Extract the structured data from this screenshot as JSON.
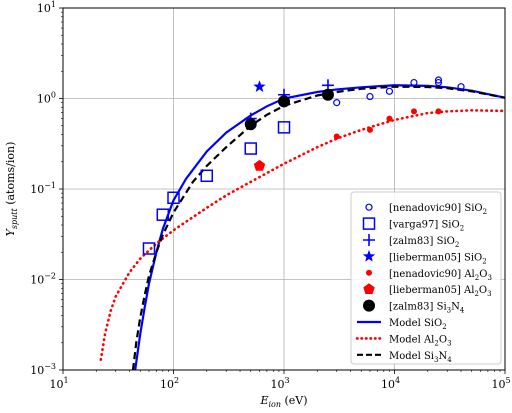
{
  "chart_data": {
    "type": "scatter",
    "title": "",
    "xlabel": {
      "main": "E",
      "sub": "ion",
      "unit": " (eV)"
    },
    "ylabel": {
      "main": "Y",
      "sub": "sputt",
      "unit": " (atoms/ion)"
    },
    "xscale": "log",
    "yscale": "log",
    "xlim": [
      10,
      100000
    ],
    "ylim": [
      0.001,
      10
    ],
    "grid": true,
    "legend_position": "center-right",
    "xticks": [
      {
        "value": 10,
        "base": "10",
        "exp": "1"
      },
      {
        "value": 100,
        "base": "10",
        "exp": "2"
      },
      {
        "value": 1000,
        "base": "10",
        "exp": "3"
      },
      {
        "value": 10000,
        "base": "10",
        "exp": "4"
      },
      {
        "value": 100000,
        "base": "10",
        "exp": "5"
      }
    ],
    "yticks": [
      {
        "value": 0.001,
        "base": "10",
        "exp": "−3"
      },
      {
        "value": 0.01,
        "base": "10",
        "exp": "−2"
      },
      {
        "value": 0.1,
        "base": "10",
        "exp": "−1"
      },
      {
        "value": 1,
        "base": "10",
        "exp": "0"
      },
      {
        "value": 10,
        "base": "10",
        "exp": "1"
      }
    ],
    "series": [
      {
        "label": "[nenadovic90] SiO",
        "sub": "2",
        "kind": "points",
        "marker": "circle-open",
        "color": "#0000ff",
        "x": [
          3000,
          6000,
          9000,
          15000,
          25000,
          25000,
          40000
        ],
        "y": [
          0.9,
          1.05,
          1.2,
          1.5,
          1.6,
          1.5,
          1.35
        ]
      },
      {
        "label": "[varga97] SiO",
        "sub": "2",
        "kind": "points",
        "marker": "square-open",
        "color": "#0000ff",
        "x": [
          60,
          80,
          100,
          200,
          500,
          1000
        ],
        "y": [
          0.022,
          0.052,
          0.08,
          0.14,
          0.28,
          0.48
        ]
      },
      {
        "label": "[zalm83] SiO",
        "sub": "2",
        "kind": "points",
        "marker": "plus",
        "color": "#0000ff",
        "x": [
          500,
          1000,
          2500
        ],
        "y": [
          0.6,
          1.1,
          1.4
        ]
      },
      {
        "label": "[lieberman05] SiO",
        "sub": "2",
        "kind": "points",
        "marker": "star",
        "color": "#0000ff",
        "x": [
          600
        ],
        "y": [
          1.35
        ]
      },
      {
        "label": "[nenadovic90] Al",
        "sub": "2",
        "tail": "O",
        "sub2": "3",
        "kind": "points",
        "marker": "circle-small",
        "color": "#ff0000",
        "x": [
          3000,
          6000,
          9000,
          15000,
          25000
        ],
        "y": [
          0.38,
          0.45,
          0.6,
          0.72,
          0.72
        ]
      },
      {
        "label": "[lieberman05] Al",
        "sub": "2",
        "tail": "O",
        "sub2": "3",
        "kind": "points",
        "marker": "pentagon",
        "color": "#ff0000",
        "x": [
          600
        ],
        "y": [
          0.18
        ]
      },
      {
        "label": "[zalm83] Si",
        "sub": "3",
        "tail": "N",
        "sub2": "4",
        "kind": "points",
        "marker": "circle-large",
        "color": "#000000",
        "x": [
          500,
          1000,
          2500
        ],
        "y": [
          0.52,
          0.93,
          1.1
        ]
      },
      {
        "label": "Model SiO",
        "sub": "2",
        "kind": "line",
        "style": "solid",
        "color": "#0000ff",
        "x": [
          45,
          50,
          55,
          60,
          70,
          80,
          100,
          130,
          200,
          300,
          500,
          700,
          1000,
          2000,
          3000,
          5000,
          10000,
          20000,
          30000,
          50000,
          100000
        ],
        "y": [
          0.001,
          0.0025,
          0.005,
          0.009,
          0.02,
          0.036,
          0.075,
          0.13,
          0.26,
          0.42,
          0.65,
          0.82,
          1.0,
          1.18,
          1.26,
          1.33,
          1.4,
          1.38,
          1.33,
          1.22,
          1.02
        ]
      },
      {
        "label": "Model Al",
        "sub": "2",
        "tail": "O",
        "sub2": "3",
        "kind": "line",
        "style": "dotted",
        "color": "#ff0000",
        "x": [
          22,
          24,
          27,
          30,
          40,
          50,
          70,
          100,
          200,
          300,
          500,
          1000,
          2000,
          3000,
          5000,
          10000,
          20000,
          30000,
          50000,
          100000
        ],
        "y": [
          0.0013,
          0.0025,
          0.0045,
          0.0065,
          0.012,
          0.017,
          0.025,
          0.035,
          0.062,
          0.085,
          0.12,
          0.19,
          0.29,
          0.36,
          0.45,
          0.58,
          0.69,
          0.72,
          0.74,
          0.73
        ]
      },
      {
        "label": "Model Si",
        "sub": "3",
        "tail": "N",
        "sub2": "4",
        "kind": "line",
        "style": "dashed",
        "color": "#000000",
        "x": [
          43,
          46,
          50,
          55,
          60,
          70,
          80,
          100,
          150,
          200,
          300,
          500,
          700,
          1000,
          2000,
          3000,
          5000,
          10000,
          20000,
          30000,
          50000,
          100000
        ],
        "y": [
          0.001,
          0.002,
          0.0038,
          0.0068,
          0.011,
          0.02,
          0.031,
          0.055,
          0.12,
          0.18,
          0.29,
          0.5,
          0.66,
          0.83,
          1.08,
          1.18,
          1.28,
          1.35,
          1.34,
          1.3,
          1.2,
          1.02
        ]
      }
    ]
  }
}
